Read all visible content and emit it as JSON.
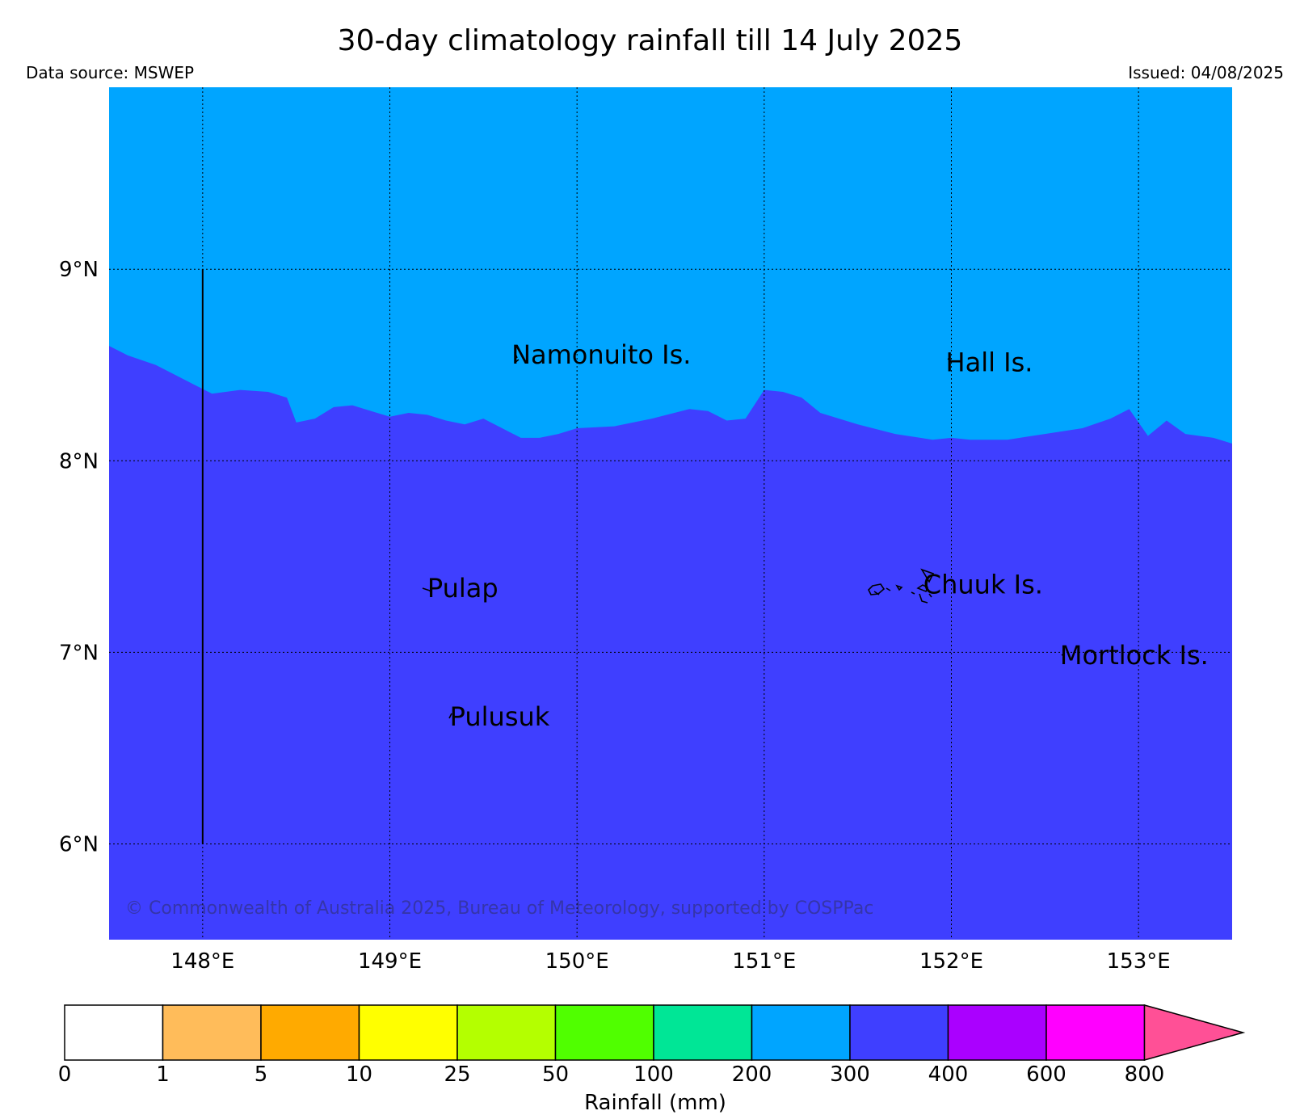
{
  "title": "30-day climatology rainfall till 14 July 2025",
  "data_source": "Data source: MSWEP",
  "issued": "Issued: 04/08/2025",
  "copyright": "© Commonwealth of Australia 2025, Bureau of Meteorology, supported by COSPPac",
  "map": {
    "lon_range": [
      147.5,
      153.5
    ],
    "lat_range": [
      5.5,
      9.95
    ],
    "grid": true,
    "lon_ticks": [
      {
        "value": 148,
        "label": "148°E"
      },
      {
        "value": 149,
        "label": "149°E"
      },
      {
        "value": 150,
        "label": "150°E"
      },
      {
        "value": 151,
        "label": "151°E"
      },
      {
        "value": 152,
        "label": "152°E"
      },
      {
        "value": 153,
        "label": "153°E"
      }
    ],
    "lat_ticks": [
      {
        "value": 6,
        "label": "6°N"
      },
      {
        "value": 7,
        "label": "7°N"
      },
      {
        "value": 8,
        "label": "8°N"
      },
      {
        "value": 9,
        "label": "9°N"
      }
    ],
    "rainfall_regions": [
      {
        "range": "200-300",
        "color": "#00a5ff",
        "position": "north"
      },
      {
        "range": "300-400",
        "color": "#3f3fff",
        "position": "south"
      }
    ],
    "boundary": [
      [
        147.5,
        8.6
      ],
      [
        147.6,
        8.55
      ],
      [
        147.75,
        8.5
      ],
      [
        147.85,
        8.45
      ],
      [
        147.95,
        8.4
      ],
      [
        148.05,
        8.35
      ],
      [
        148.2,
        8.37
      ],
      [
        148.35,
        8.36
      ],
      [
        148.45,
        8.33
      ],
      [
        148.5,
        8.2
      ],
      [
        148.6,
        8.22
      ],
      [
        148.7,
        8.28
      ],
      [
        148.8,
        8.29
      ],
      [
        148.9,
        8.26
      ],
      [
        149.0,
        8.23
      ],
      [
        149.1,
        8.25
      ],
      [
        149.2,
        8.24
      ],
      [
        149.3,
        8.21
      ],
      [
        149.4,
        8.19
      ],
      [
        149.5,
        8.22
      ],
      [
        149.6,
        8.17
      ],
      [
        149.7,
        8.12
      ],
      [
        149.8,
        8.12
      ],
      [
        149.9,
        8.14
      ],
      [
        150.0,
        8.17
      ],
      [
        150.2,
        8.18
      ],
      [
        150.4,
        8.22
      ],
      [
        150.6,
        8.27
      ],
      [
        150.7,
        8.26
      ],
      [
        150.8,
        8.21
      ],
      [
        150.9,
        8.22
      ],
      [
        151.0,
        8.37
      ],
      [
        151.1,
        8.36
      ],
      [
        151.2,
        8.33
      ],
      [
        151.3,
        8.25
      ],
      [
        151.5,
        8.19
      ],
      [
        151.7,
        8.14
      ],
      [
        151.9,
        8.11
      ],
      [
        152.0,
        8.12
      ],
      [
        152.1,
        8.11
      ],
      [
        152.3,
        8.11
      ],
      [
        152.5,
        8.14
      ],
      [
        152.7,
        8.17
      ],
      [
        152.85,
        8.22
      ],
      [
        152.95,
        8.27
      ],
      [
        153.05,
        8.13
      ],
      [
        153.15,
        8.21
      ],
      [
        153.25,
        8.14
      ],
      [
        153.4,
        8.12
      ],
      [
        153.5,
        8.09
      ]
    ],
    "meridian_line": {
      "lon": 148,
      "lat_from": 6,
      "lat_to": 9
    },
    "places": [
      {
        "name": "Namonuito Is.",
        "lon": 149.65,
        "lat": 8.55
      },
      {
        "name": "Hall Is.",
        "lon": 151.97,
        "lat": 8.51
      },
      {
        "name": "Pulap",
        "lon": 149.2,
        "lat": 7.33
      },
      {
        "name": "Chuuk Is.",
        "lon": 151.85,
        "lat": 7.35
      },
      {
        "name": "Mortlock Is.",
        "lon": 152.58,
        "lat": 6.98
      },
      {
        "name": "Pulusuk",
        "lon": 149.32,
        "lat": 6.66
      }
    ]
  },
  "colorbar": {
    "label": "Rainfall (mm)",
    "bins": [
      {
        "color": "#ffffff"
      },
      {
        "color": "#ffbc5a"
      },
      {
        "color": "#ffaa00"
      },
      {
        "color": "#ffff00"
      },
      {
        "color": "#b4ff00"
      },
      {
        "color": "#50ff00"
      },
      {
        "color": "#00e696"
      },
      {
        "color": "#00a5ff"
      },
      {
        "color": "#3f3fff"
      },
      {
        "color": "#aa00ff"
      },
      {
        "color": "#ff00ff"
      }
    ],
    "extend_color": "#ff5096",
    "tick_labels": [
      "0",
      "1",
      "5",
      "10",
      "25",
      "50",
      "100",
      "200",
      "300",
      "400",
      "600",
      "800"
    ]
  }
}
